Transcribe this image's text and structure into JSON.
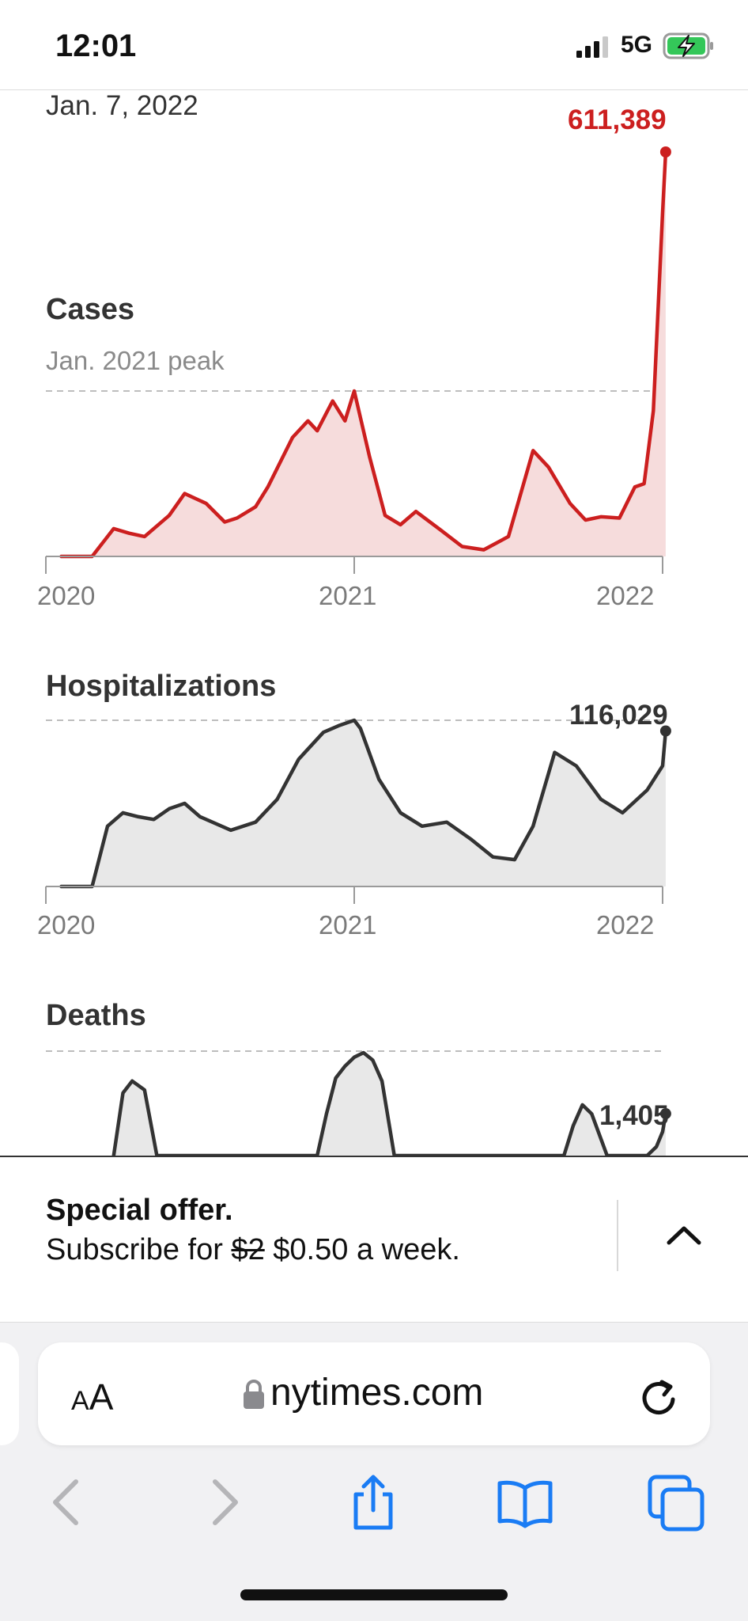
{
  "status_bar": {
    "time": "12:01",
    "network": "5G"
  },
  "header": {
    "date": "Jan. 7, 2022"
  },
  "chart_data": [
    {
      "type": "area",
      "title": "Cases",
      "annotation": "Jan. 2021 peak",
      "latest_label": "611,389",
      "latest_value": 611389,
      "color": "#cc1f1f",
      "fill": "#f6dcdc",
      "x_tick_labels": [
        "2020",
        "2021",
        "2022"
      ],
      "x": [
        2020.05,
        2020.15,
        2020.22,
        2020.27,
        2020.32,
        2020.4,
        2020.45,
        2020.52,
        2020.58,
        2020.62,
        2020.68,
        2020.72,
        2020.8,
        2020.85,
        2020.88,
        2020.93,
        2020.97,
        2021.0,
        2021.02,
        2021.05,
        2021.1,
        2021.15,
        2021.2,
        2021.28,
        2021.35,
        2021.42,
        2021.5,
        2021.58,
        2021.63,
        2021.7,
        2021.75,
        2021.8,
        2021.86,
        2021.91,
        2021.94,
        2021.97,
        2022.0,
        2022.01
      ],
      "values": [
        0,
        0,
        42000,
        35000,
        30000,
        62000,
        95000,
        80000,
        52000,
        58000,
        75000,
        105000,
        180000,
        205000,
        190000,
        235000,
        205000,
        250000,
        210000,
        150000,
        62000,
        48000,
        68000,
        40000,
        15000,
        10000,
        30000,
        160000,
        135000,
        80000,
        55000,
        60000,
        58000,
        105000,
        110000,
        220000,
        520000,
        611389
      ],
      "reference_line": 250000,
      "ylim": [
        0,
        611389
      ]
    },
    {
      "type": "area",
      "title": "Hospitalizations",
      "latest_label": "116,029",
      "latest_value": 116029,
      "color": "#333333",
      "fill": "#e8e8e8",
      "x_tick_labels": [
        "2020",
        "2021",
        "2022"
      ],
      "x": [
        2020.05,
        2020.15,
        2020.2,
        2020.25,
        2020.3,
        2020.35,
        2020.4,
        2020.45,
        2020.5,
        2020.6,
        2020.68,
        2020.75,
        2020.82,
        2020.9,
        2020.95,
        2021.0,
        2021.02,
        2021.08,
        2021.15,
        2021.22,
        2021.3,
        2021.38,
        2021.45,
        2021.52,
        2021.58,
        2021.65,
        2021.72,
        2021.8,
        2021.87,
        2021.95,
        2022.0,
        2022.01
      ],
      "values": [
        0,
        0,
        45000,
        55000,
        52000,
        50000,
        58000,
        62000,
        52000,
        42000,
        48000,
        65000,
        95000,
        115000,
        120000,
        124000,
        118000,
        80000,
        55000,
        45000,
        48000,
        35000,
        22000,
        20000,
        45000,
        100000,
        90000,
        65000,
        55000,
        72000,
        90000,
        116029
      ],
      "reference_line": 124000,
      "ylim": [
        0,
        124000
      ]
    },
    {
      "type": "area",
      "title": "Deaths",
      "latest_label": "1,405",
      "latest_value": 1405,
      "color": "#333333",
      "fill": "#e8e8e8",
      "x": [
        2020.22,
        2020.25,
        2020.28,
        2020.32,
        2020.36,
        2020.88,
        2020.91,
        2020.94,
        2020.97,
        2021.0,
        2021.03,
        2021.06,
        2021.09,
        2021.13,
        2021.68,
        2021.71,
        2021.74,
        2021.77,
        2021.82,
        2021.95,
        2021.98,
        2022.0,
        2022.01
      ],
      "values": [
        0,
        2100,
        2500,
        2200,
        0,
        0,
        1400,
        2600,
        3000,
        3300,
        3450,
        3200,
        2500,
        0,
        0,
        1000,
        1700,
        1400,
        0,
        0,
        300,
        800,
        1405
      ]
    }
  ],
  "offer": {
    "title": "Special offer.",
    "text_prefix": "Subscribe for ",
    "old_price": "$2",
    "text_suffix": " $0.50 a week."
  },
  "browser": {
    "aa_big": "A",
    "aa_label": "A",
    "url": "nytimes.com"
  },
  "colors": {
    "accent_blue": "#1a7cf4",
    "disabled_gray": "#b5b5b8"
  },
  "icons": [
    "signal-icon",
    "battery-charging-icon",
    "chevron-up-icon",
    "lock-icon",
    "reload-icon",
    "back-icon",
    "forward-icon",
    "share-icon",
    "bookmarks-icon",
    "tabs-icon"
  ]
}
